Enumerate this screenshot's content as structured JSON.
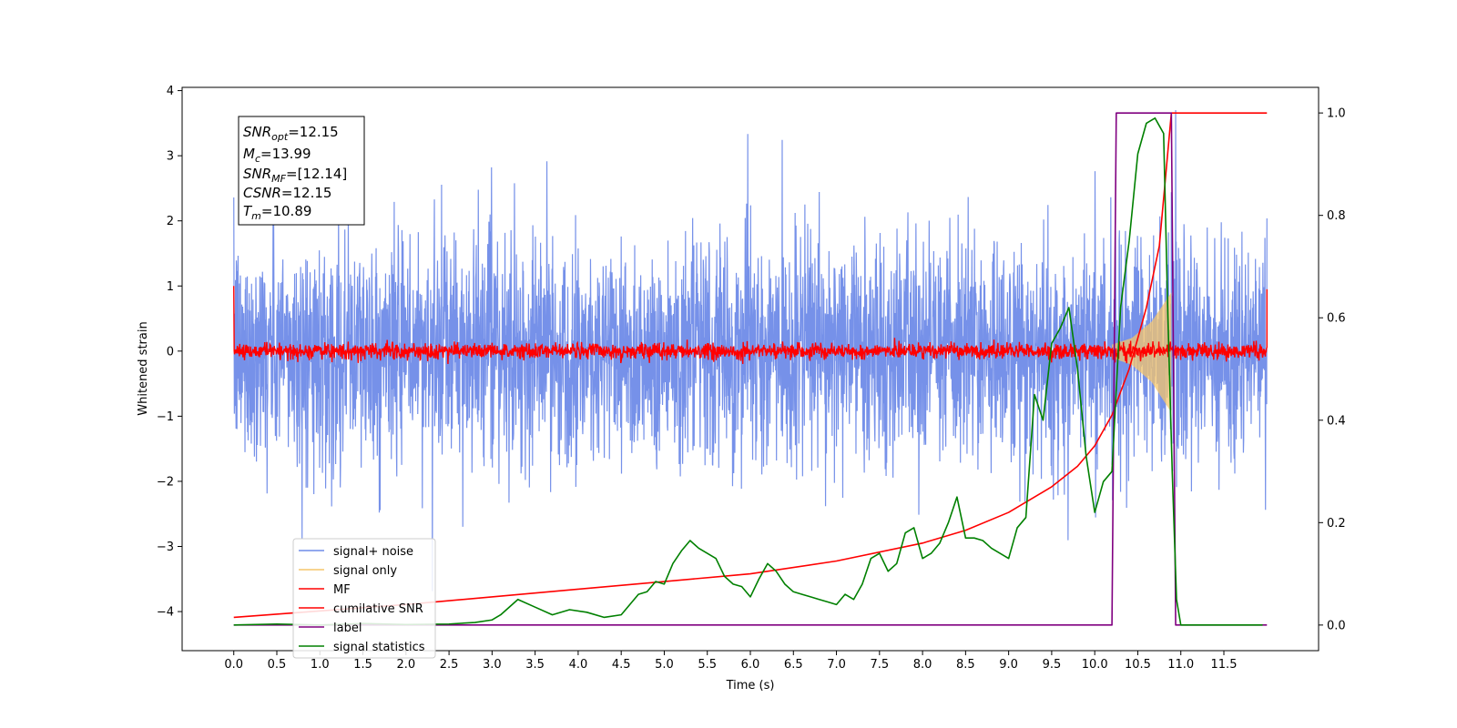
{
  "chart_data": {
    "type": "line",
    "xlabel": "Time (s)",
    "ylabel": "Whitened strain",
    "xlim": [
      -0.6,
      12.6
    ],
    "ylim": [
      -4.6,
      4.05
    ],
    "y2lim": [
      -0.05,
      1.05
    ],
    "x_ticks": [
      0.0,
      0.5,
      1.0,
      1.5,
      2.0,
      2.5,
      3.0,
      3.5,
      4.0,
      4.5,
      5.0,
      5.5,
      6.0,
      6.5,
      7.0,
      7.5,
      8.0,
      8.5,
      9.0,
      9.5,
      10.0,
      10.5,
      11.0,
      11.5
    ],
    "x_tick_labels": [
      "0.0",
      "0.5",
      "1.0",
      "1.5",
      "2.0",
      "2.5",
      "3.0",
      "3.5",
      "4.0",
      "4.5",
      "5.0",
      "5.5",
      "6.0",
      "6.5",
      "7.0",
      "7.5",
      "8.0",
      "8.5",
      "9.0",
      "9.5",
      "10.0",
      "10.5",
      "11.0",
      "11.5"
    ],
    "y_ticks": [
      4,
      3,
      2,
      1,
      0,
      -1,
      -2,
      -3,
      -4
    ],
    "y_tick_labels": [
      "4",
      "3",
      "2",
      "1",
      "0",
      "−1",
      "−2",
      "−3",
      "−4"
    ],
    "y2_ticks": [
      1.0,
      0.8,
      0.6,
      0.4,
      0.2,
      0.0
    ],
    "y2_tick_labels": [
      "1.0",
      "0.8",
      "0.6",
      "0.4",
      "0.2",
      "0.0"
    ],
    "grid": false,
    "legend_position": "lower-left",
    "series": [
      {
        "name": "signal+ noise",
        "color": "#6f8be8",
        "axis": "left",
        "noise_sigma": 0.85,
        "x_range": [
          0.0,
          12.0
        ]
      },
      {
        "name": "signal only",
        "color": "#f5c66b",
        "axis": "left",
        "x": [
          10.2,
          10.89
        ],
        "envelope": [
          0.1,
          0.2,
          0.45,
          0.9
        ]
      },
      {
        "name": "MF",
        "color": "#ff0000",
        "axis": "left",
        "noise_sigma": 0.06,
        "start_value": 1.0,
        "end_value": 0.95
      },
      {
        "name": "cumilative SNR",
        "color": "#ff0000",
        "axis": "right",
        "x": [
          0.0,
          2.0,
          4.0,
          6.0,
          7.0,
          8.0,
          8.5,
          9.0,
          9.5,
          9.8,
          10.0,
          10.2,
          10.4,
          10.6,
          10.75,
          10.89,
          12.0
        ],
        "y": [
          0.015,
          0.04,
          0.07,
          0.1,
          0.125,
          0.16,
          0.185,
          0.22,
          0.27,
          0.31,
          0.35,
          0.41,
          0.5,
          0.62,
          0.74,
          1.0,
          1.0
        ]
      },
      {
        "name": "label",
        "color": "#800080",
        "axis": "right",
        "x": [
          0.0,
          10.2,
          10.25,
          10.89,
          10.94,
          12.0
        ],
        "y": [
          0.0,
          0.0,
          1.0,
          1.0,
          0.0,
          0.0
        ]
      },
      {
        "name": "signal statistics",
        "color": "#008000",
        "axis": "right",
        "x": [
          0.0,
          0.5,
          1.0,
          1.5,
          2.0,
          2.5,
          2.8,
          3.0,
          3.1,
          3.3,
          3.5,
          3.7,
          3.9,
          4.1,
          4.3,
          4.5,
          4.7,
          4.8,
          4.9,
          5.0,
          5.1,
          5.2,
          5.3,
          5.4,
          5.5,
          5.6,
          5.7,
          5.8,
          5.9,
          6.0,
          6.1,
          6.2,
          6.3,
          6.4,
          6.5,
          6.6,
          6.7,
          6.8,
          6.9,
          7.0,
          7.1,
          7.2,
          7.3,
          7.4,
          7.5,
          7.6,
          7.7,
          7.8,
          7.9,
          8.0,
          8.1,
          8.2,
          8.3,
          8.4,
          8.5,
          8.6,
          8.7,
          8.8,
          8.9,
          9.0,
          9.1,
          9.2,
          9.3,
          9.4,
          9.5,
          9.6,
          9.7,
          9.8,
          9.9,
          10.0,
          10.1,
          10.2,
          10.3,
          10.4,
          10.5,
          10.6,
          10.7,
          10.8,
          10.85,
          10.9,
          10.95,
          11.0,
          11.5,
          11.95
        ],
        "y": [
          0.0,
          0.002,
          0.0,
          0.003,
          0.001,
          0.002,
          0.005,
          0.01,
          0.02,
          0.05,
          0.035,
          0.02,
          0.03,
          0.025,
          0.015,
          0.02,
          0.06,
          0.065,
          0.085,
          0.08,
          0.12,
          0.145,
          0.165,
          0.15,
          0.14,
          0.13,
          0.095,
          0.08,
          0.075,
          0.055,
          0.09,
          0.12,
          0.105,
          0.08,
          0.065,
          0.06,
          0.055,
          0.05,
          0.045,
          0.04,
          0.06,
          0.05,
          0.08,
          0.13,
          0.14,
          0.105,
          0.12,
          0.18,
          0.19,
          0.13,
          0.14,
          0.16,
          0.2,
          0.25,
          0.17,
          0.17,
          0.165,
          0.15,
          0.14,
          0.13,
          0.19,
          0.21,
          0.45,
          0.4,
          0.55,
          0.58,
          0.62,
          0.5,
          0.33,
          0.22,
          0.28,
          0.3,
          0.62,
          0.75,
          0.92,
          0.98,
          0.99,
          0.96,
          0.6,
          0.3,
          0.05,
          0.0,
          0.0,
          0.0
        ]
      }
    ],
    "annotations": {
      "info_box": [
        {
          "main": "SNR",
          "sub": "opt",
          "rest": "=12.15"
        },
        {
          "main": "M",
          "sub": "c",
          "rest": "=13.99"
        },
        {
          "main": "SNR",
          "sub": "MF",
          "rest": "=[12.14]"
        },
        {
          "main": "CSNR",
          "sub": "",
          "rest": "=12.15"
        },
        {
          "main": "T",
          "sub": "m",
          "rest": "=10.89"
        }
      ]
    }
  }
}
